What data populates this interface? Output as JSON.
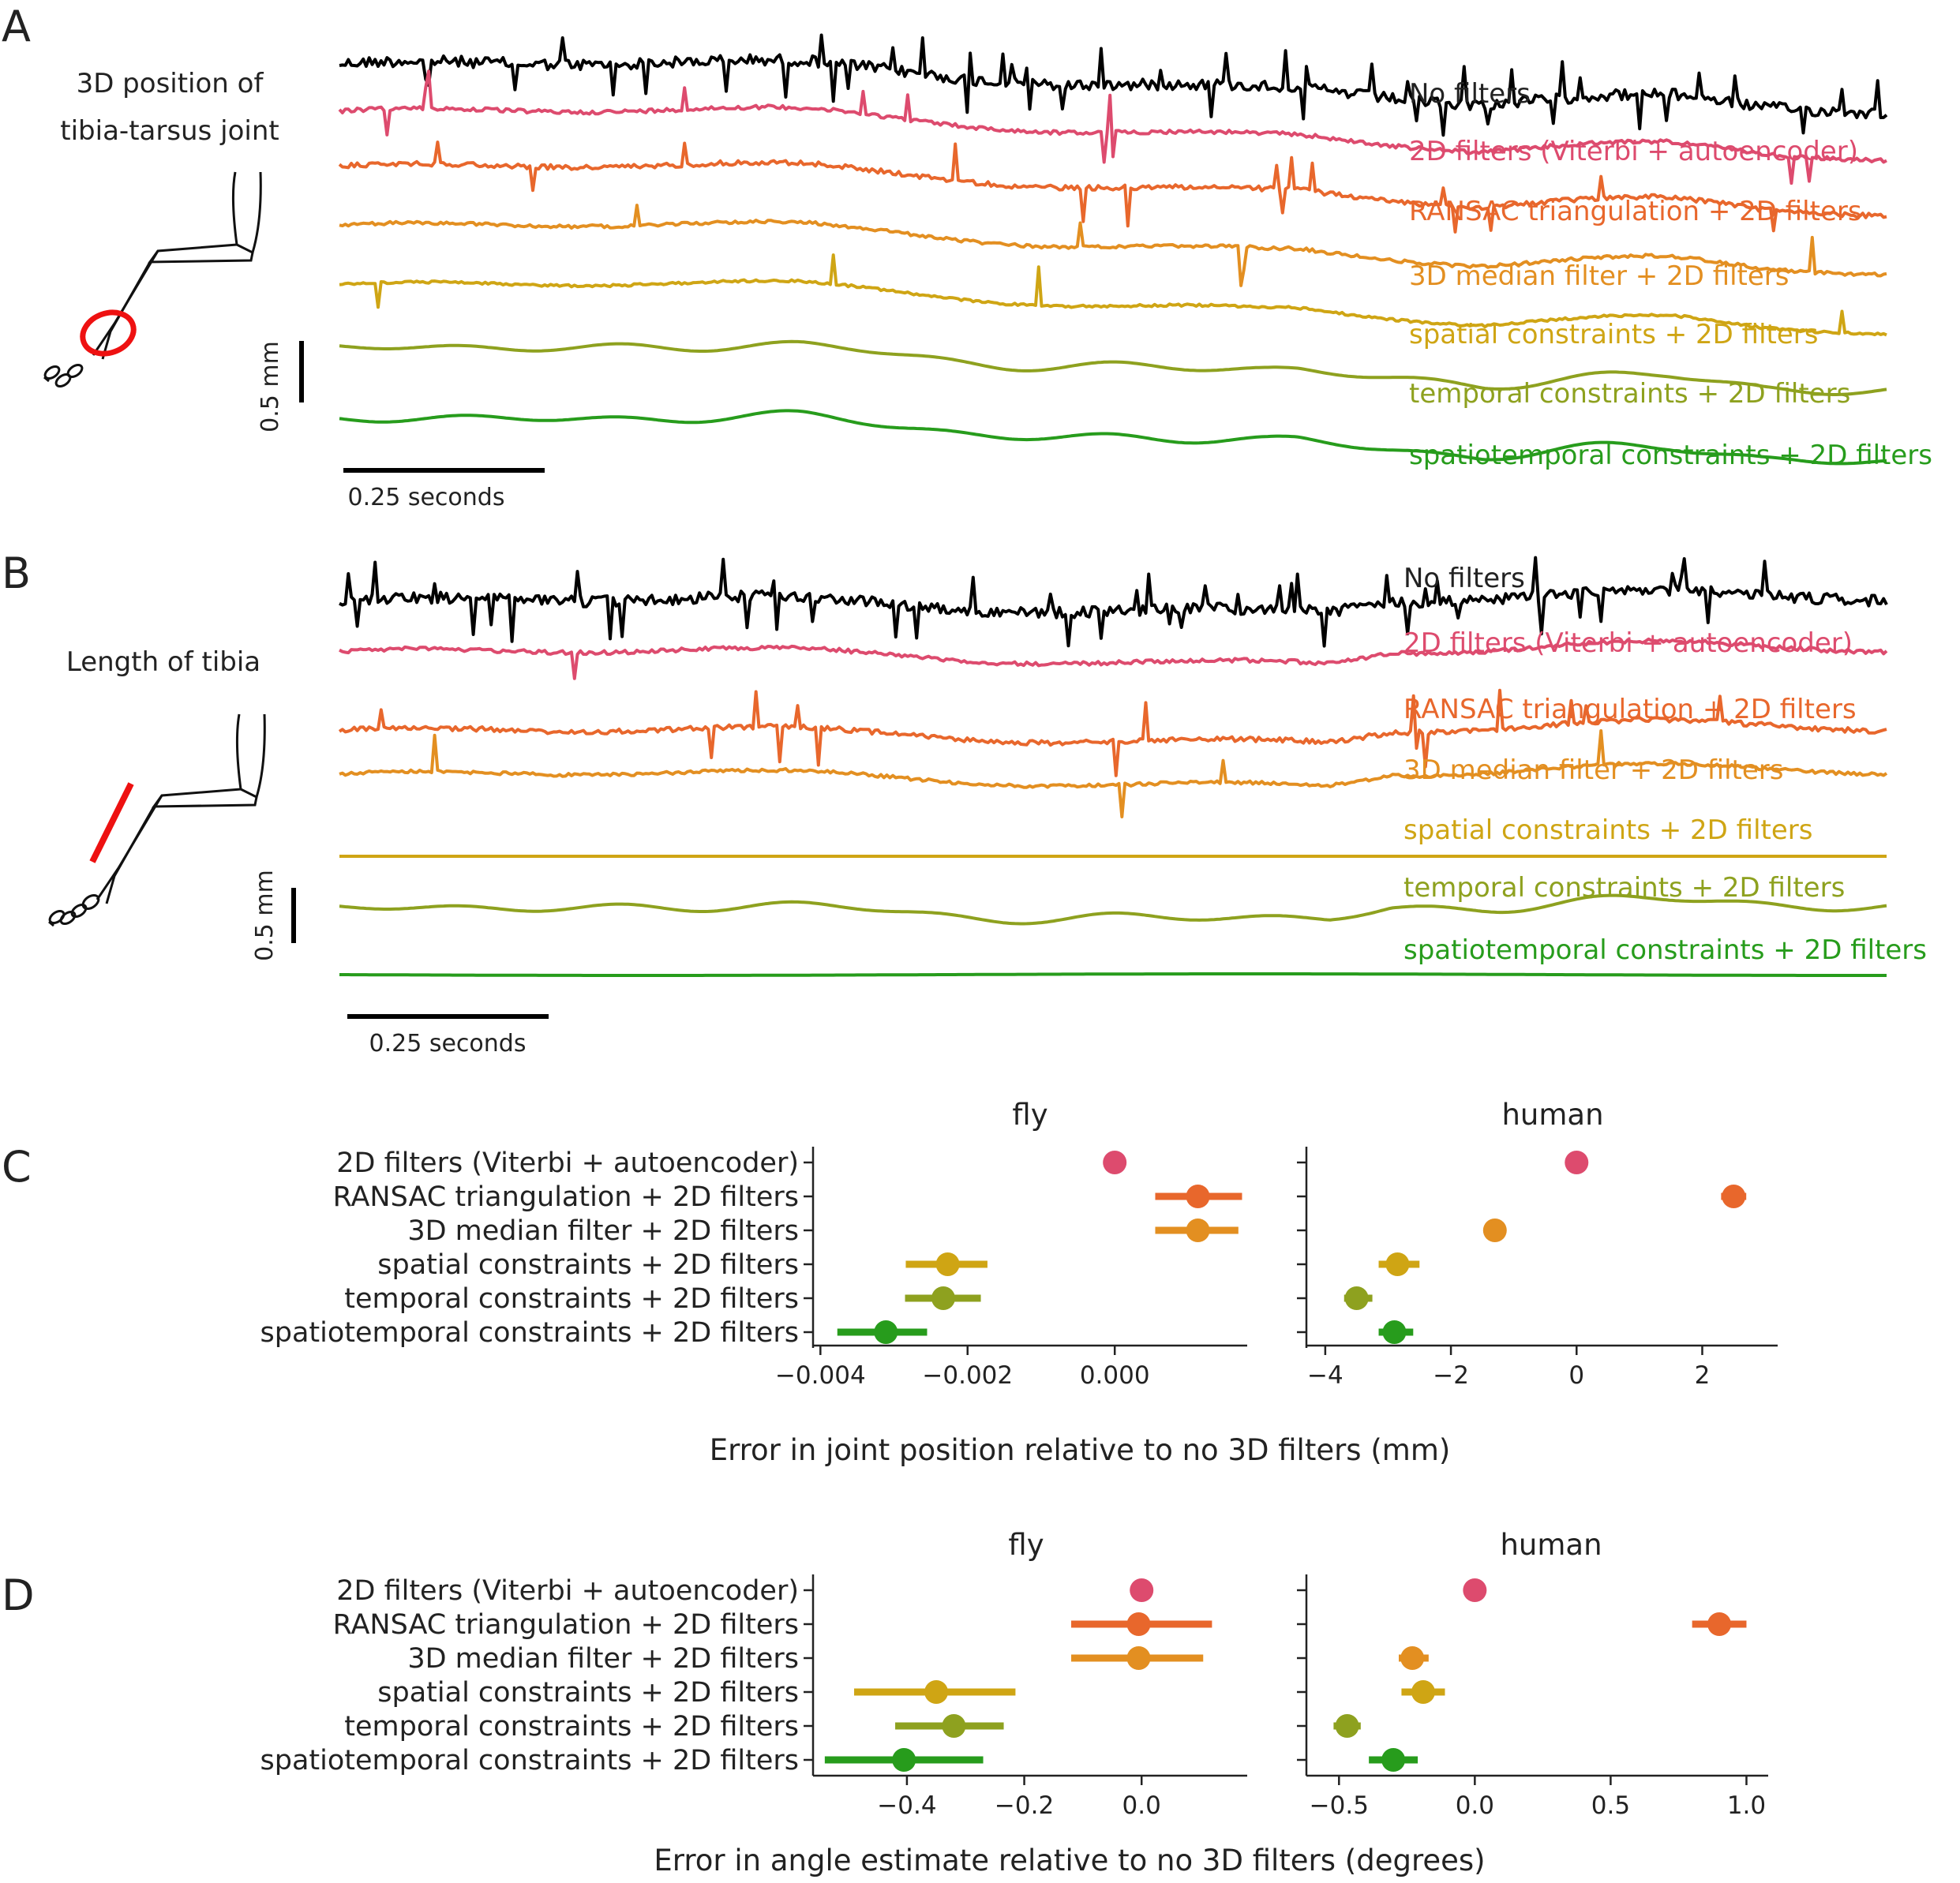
{
  "colors": {
    "no_filters": "#000000",
    "viterbi": "#dd4b6e",
    "ransac": "#e8672c",
    "median": "#e38f21",
    "spatial": "#cfa514",
    "temporal": "#8ea11f",
    "spatiotemporal": "#279c1c",
    "highlight": "#ee1111"
  },
  "panel_a": {
    "letter": "A",
    "title_line1": "3D position of",
    "title_line2": "tibia-tarsus joint",
    "scale_y_label": "0.5 mm",
    "scale_x_label": "0.25 seconds",
    "traces": [
      {
        "label": "No filters",
        "color_key": "no_filters"
      },
      {
        "label": "2D filters (Viterbi + autoencoder)",
        "color_key": "viterbi"
      },
      {
        "label": "RANSAC triangulation + 2D filters",
        "color_key": "ransac"
      },
      {
        "label": "3D median filter + 2D filters",
        "color_key": "median"
      },
      {
        "label": "spatial constraints + 2D filters",
        "color_key": "spatial"
      },
      {
        "label": "temporal constraints + 2D filters",
        "color_key": "temporal"
      },
      {
        "label": "spatiotemporal constraints + 2D filters",
        "color_key": "spatiotemporal"
      }
    ]
  },
  "panel_b": {
    "letter": "B",
    "title": "Length of tibia",
    "scale_y_label": "0.5 mm",
    "scale_x_label": "0.25 seconds",
    "traces": [
      {
        "label": "No filters",
        "color_key": "no_filters"
      },
      {
        "label": "2D filters (Viterbi + autoencoder)",
        "color_key": "viterbi"
      },
      {
        "label": "RANSAC triangulation + 2D filters",
        "color_key": "ransac"
      },
      {
        "label": "3D median filter + 2D filters",
        "color_key": "median"
      },
      {
        "label": "spatial constraints + 2D filters",
        "color_key": "spatial"
      },
      {
        "label": "temporal constraints + 2D filters",
        "color_key": "temporal"
      },
      {
        "label": "spatiotemporal constraints + 2D filters",
        "color_key": "spatiotemporal"
      }
    ]
  },
  "chart_data": [
    {
      "panel": "C",
      "type": "scatter",
      "title": "fly",
      "xlabel": "Error in joint position relative to no 3D filters (mm)",
      "categories": [
        "2D filters (Viterbi + autoencoder)",
        "RANSAC triangulation + 2D filters",
        "3D median filter + 2D filters",
        "spatial constraints + 2D filters",
        "temporal constraints + 2D filters",
        "spatiotemporal constraints + 2D filters"
      ],
      "values": [
        0.0,
        0.00113,
        0.00113,
        -0.00227,
        -0.00233,
        -0.00311
      ],
      "ci_low": [
        0.0,
        0.00055,
        0.00055,
        -0.00284,
        -0.00285,
        -0.00377
      ],
      "ci_high": [
        0.0,
        0.00173,
        0.00168,
        -0.00173,
        -0.00182,
        -0.00255
      ],
      "xlim": [
        -0.0041,
        0.0018
      ],
      "xticks": [
        -0.004,
        -0.002,
        0.0
      ],
      "xtick_labels": [
        "−0.004",
        "−0.002",
        "0.000"
      ]
    },
    {
      "panel": "C",
      "type": "scatter",
      "title": "human",
      "xlabel": "Error in joint position relative to no 3D filters (mm)",
      "categories": [
        "2D filters (Viterbi + autoencoder)",
        "RANSAC triangulation + 2D filters",
        "3D median filter + 2D filters",
        "spatial constraints + 2D filters",
        "temporal constraints + 2D filters",
        "spatiotemporal constraints + 2D filters"
      ],
      "values": [
        0.0,
        2.5,
        -1.3,
        -2.85,
        -3.5,
        -2.9
      ],
      "ci_low": [
        0.0,
        2.3,
        -1.45,
        -3.15,
        -3.7,
        -3.15
      ],
      "ci_high": [
        0.0,
        2.7,
        -1.15,
        -2.5,
        -3.25,
        -2.6
      ],
      "xlim": [
        -4.3,
        3.2
      ],
      "xticks": [
        -4,
        -2,
        0,
        2
      ],
      "xtick_labels": [
        "−4",
        "−2",
        "0",
        "2"
      ]
    },
    {
      "panel": "D",
      "type": "scatter",
      "title": "fly",
      "xlabel": "Error in angle estimate relative to no 3D filters (degrees)",
      "categories": [
        "2D filters (Viterbi + autoencoder)",
        "RANSAC triangulation + 2D filters",
        "3D median filter + 2D filters",
        "spatial constraints + 2D filters",
        "temporal constraints + 2D filters",
        "spatiotemporal constraints + 2D filters"
      ],
      "values": [
        0.0,
        -0.005,
        -0.005,
        -0.35,
        -0.32,
        -0.405
      ],
      "ci_low": [
        0.0,
        -0.12,
        -0.12,
        -0.49,
        -0.42,
        -0.54
      ],
      "ci_high": [
        0.0,
        0.12,
        0.105,
        -0.215,
        -0.235,
        -0.27
      ],
      "xlim": [
        -0.56,
        0.18
      ],
      "xticks": [
        -0.4,
        -0.2,
        0.0
      ],
      "xtick_labels": [
        "−0.4",
        "−0.2",
        "0.0"
      ]
    },
    {
      "panel": "D",
      "type": "scatter",
      "title": "human",
      "xlabel": "Error in angle estimate relative to no 3D filters (degrees)",
      "categories": [
        "2D filters (Viterbi + autoencoder)",
        "RANSAC triangulation + 2D filters",
        "3D median filter + 2D filters",
        "spatial constraints + 2D filters",
        "temporal constraints + 2D filters",
        "spatiotemporal constraints + 2D filters"
      ],
      "values": [
        0.0,
        0.9,
        -0.23,
        -0.19,
        -0.47,
        -0.3
      ],
      "ci_low": [
        0.0,
        0.8,
        -0.28,
        -0.27,
        -0.52,
        -0.39
      ],
      "ci_high": [
        0.0,
        1.0,
        -0.17,
        -0.11,
        -0.42,
        -0.21
      ],
      "xlim": [
        -0.62,
        1.08
      ],
      "xticks": [
        -0.5,
        0.0,
        0.5,
        1.0
      ],
      "xtick_labels": [
        "−0.5",
        "0.0",
        "0.5",
        "1.0"
      ]
    }
  ],
  "panel_c": {
    "letter": "C",
    "xlabel": "Error in joint position relative to no 3D filters (mm)",
    "left_title": "fly",
    "right_title": "human"
  },
  "panel_d": {
    "letter": "D",
    "xlabel": "Error in angle estimate relative to no 3D filters (degrees)",
    "left_title": "fly",
    "right_title": "human"
  }
}
